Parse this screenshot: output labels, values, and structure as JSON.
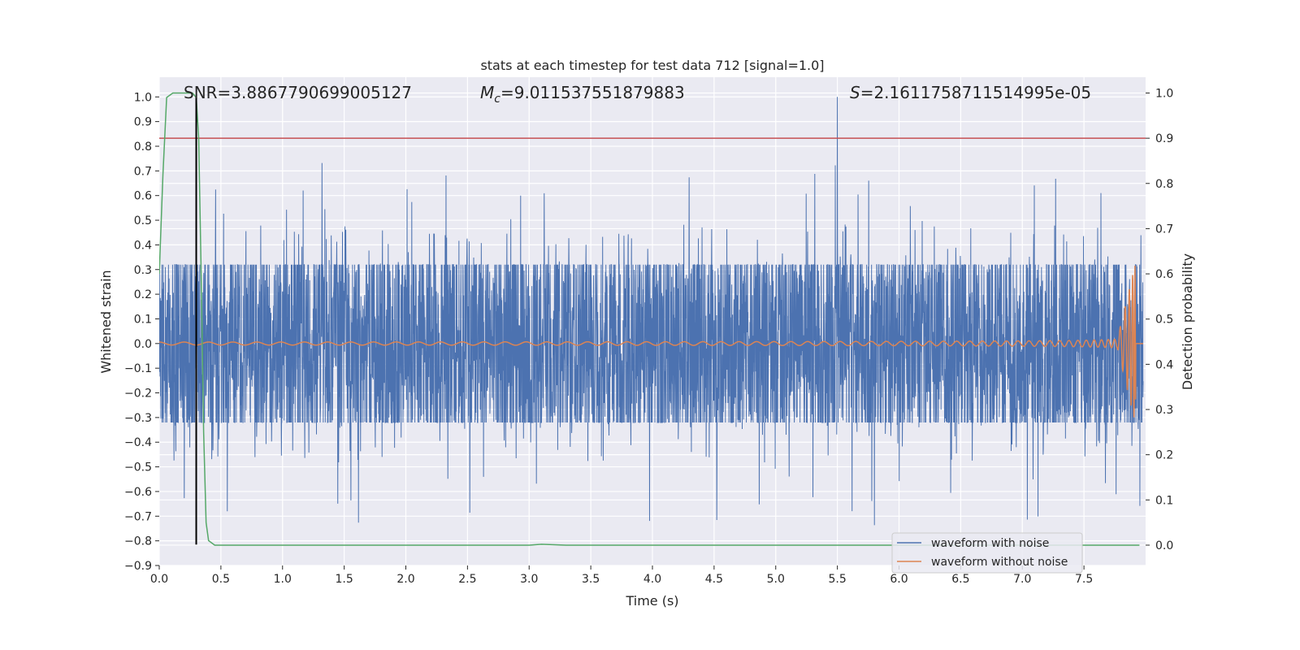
{
  "chart_data": {
    "type": "line",
    "title": "stats at each timestep for test data 712 [signal=1.0]",
    "xlabel": "Time (s)",
    "ylabel": "Whitened strain",
    "ylabel_right": "Detection probability",
    "xlim": [
      0.0,
      8.0
    ],
    "ylim": [
      -0.9,
      1.08
    ],
    "ylim_right": [
      -0.045,
      1.035
    ],
    "xticks": [
      0.0,
      0.5,
      1.0,
      1.5,
      2.0,
      2.5,
      3.0,
      3.5,
      4.0,
      4.5,
      5.0,
      5.5,
      6.0,
      6.5,
      7.0,
      7.5
    ],
    "xtick_labels": [
      "0.0",
      "0.5",
      "1.0",
      "1.5",
      "2.0",
      "2.5",
      "3.0",
      "3.5",
      "4.0",
      "4.5",
      "5.0",
      "5.5",
      "6.0",
      "6.5",
      "7.0",
      "7.5"
    ],
    "yticks": [
      1.0,
      0.9,
      0.8,
      0.7,
      0.6,
      0.5,
      0.4,
      0.3,
      0.2,
      0.1,
      0.0,
      -0.1,
      -0.2,
      -0.3,
      -0.4,
      -0.5,
      -0.6,
      -0.7,
      -0.8,
      -0.9
    ],
    "ytick_labels": [
      "1.0",
      "0.9",
      "0.8",
      "0.7",
      "0.6",
      "0.5",
      "0.4",
      "0.3",
      "0.2",
      "0.1",
      "0.0",
      "−0.1",
      "−0.2",
      "−0.3",
      "−0.4",
      "−0.5",
      "−0.6",
      "−0.7",
      "−0.8",
      "−0.9"
    ],
    "yticks_right": [
      1.0,
      0.9,
      0.8,
      0.7,
      0.6,
      0.5,
      0.4,
      0.3,
      0.2,
      0.1,
      0.0
    ],
    "ytick_labels_right": [
      "1.0",
      "0.9",
      "0.8",
      "0.7",
      "0.6",
      "0.5",
      "0.4",
      "0.3",
      "0.2",
      "0.1",
      "0.0"
    ],
    "grid": true,
    "annotations": {
      "snr": "SNR=3.8867790699005127",
      "mc_symbol": "M",
      "mc_sub": "c",
      "mc_value": "=9.011537551879883",
      "s_symbol": "S",
      "s_value": "=2.1611758711514995e-05"
    },
    "series": [
      {
        "name": "waveform with noise",
        "color": "#4c72b0",
        "envelope": 0.32,
        "peak_t": 5.5,
        "peak_v": 1.0
      },
      {
        "name": "waveform without noise",
        "color": "#dd8452",
        "amp_start": 0.006,
        "amp_end": 0.33,
        "t_merge": 7.92
      }
    ],
    "detection_probability": {
      "color": "#55a868",
      "t": [
        0.0,
        0.03,
        0.06,
        0.11,
        0.2,
        0.27,
        0.3,
        0.32,
        0.34,
        0.36,
        0.38,
        0.4,
        0.45,
        3.0,
        3.1,
        3.3,
        7.95
      ],
      "p": [
        0.6,
        0.82,
        0.99,
        1.0,
        1.0,
        1.0,
        0.99,
        0.9,
        0.6,
        0.25,
        0.05,
        0.01,
        0.0,
        0.0,
        0.002,
        0.0,
        0.0
      ]
    },
    "threshold": {
      "value": 0.9,
      "color": "#c44e52"
    },
    "event_marker": {
      "t": 0.3,
      "y_top": 1.0,
      "y_bottom": -0.815,
      "color": "#000000"
    },
    "legend": {
      "position": "lower-right",
      "entries": [
        "waveform with noise",
        "waveform without noise"
      ]
    }
  }
}
